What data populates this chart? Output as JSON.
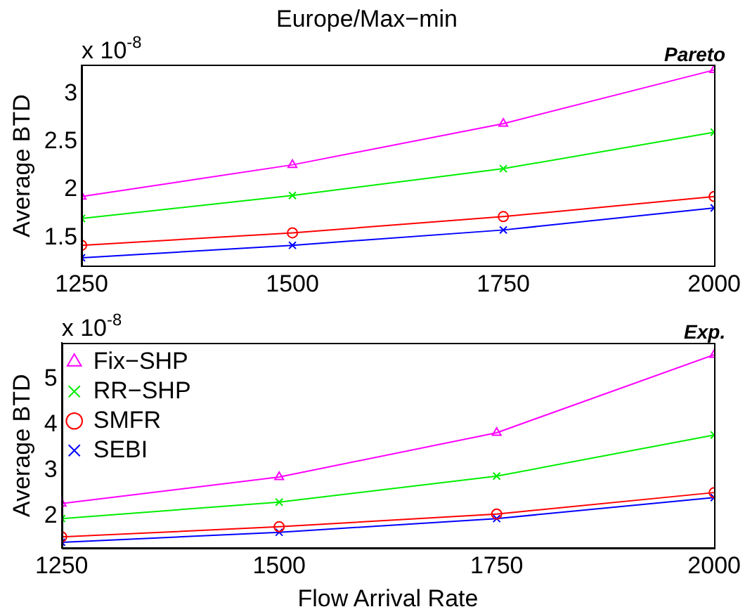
{
  "chart_data": [
    {
      "type": "line",
      "title": "Europe/Max−min",
      "ylabel": "Average BTD",
      "annotations": [
        "x 10$^{-8}$",
        "Pareto"
      ],
      "x": [
        1250,
        1500,
        1750,
        2000
      ],
      "xlim": [
        1250,
        2000
      ],
      "xticks": [
        1250,
        1500,
        1750,
        2000
      ],
      "ylim": [
        1.2,
        3.3
      ],
      "yticks": [
        1.5,
        2,
        2.5,
        3
      ],
      "grid": false,
      "legend": false,
      "series": [
        {
          "color": "#ff00ff",
          "marker": "triangle",
          "values": [
            1.93,
            2.26,
            2.69,
            3.25
          ]
        },
        {
          "color": "#00ee00",
          "marker": "cross",
          "values": [
            1.7,
            1.94,
            2.22,
            2.6
          ]
        },
        {
          "color": "#ff0000",
          "marker": "circle",
          "values": [
            1.42,
            1.55,
            1.72,
            1.93
          ]
        },
        {
          "color": "#0000ff",
          "marker": "cross",
          "values": [
            1.29,
            1.42,
            1.58,
            1.81
          ]
        }
      ]
    },
    {
      "type": "line",
      "xlabel": "Flow Arrival Rate",
      "ylabel": "Average BTD",
      "annotations": [
        "x 10$^{-8}$",
        "Exp."
      ],
      "x": [
        1250,
        1500,
        1750,
        2000
      ],
      "xlim": [
        1250,
        2000
      ],
      "xticks": [
        1250,
        1500,
        1750,
        2000
      ],
      "ylim": [
        1.3,
        5.8
      ],
      "yticks": [
        2,
        3,
        4,
        5
      ],
      "grid": false,
      "legend": "top",
      "series": [
        {
          "name": "Fix−SHP",
          "color": "#ff00ff",
          "marker": "triangle",
          "values": [
            2.28,
            2.86,
            3.83,
            5.54
          ]
        },
        {
          "name": "RR−SHP",
          "color": "#00ee00",
          "marker": "cross",
          "values": [
            1.95,
            2.31,
            2.88,
            3.78
          ]
        },
        {
          "name": "SMFR",
          "color": "#ff0000",
          "marker": "circle",
          "values": [
            1.55,
            1.77,
            2.05,
            2.52
          ]
        },
        {
          "name": "SEBI",
          "color": "#0000ff",
          "marker": "cross",
          "values": [
            1.43,
            1.65,
            1.95,
            2.41
          ]
        }
      ]
    }
  ]
}
